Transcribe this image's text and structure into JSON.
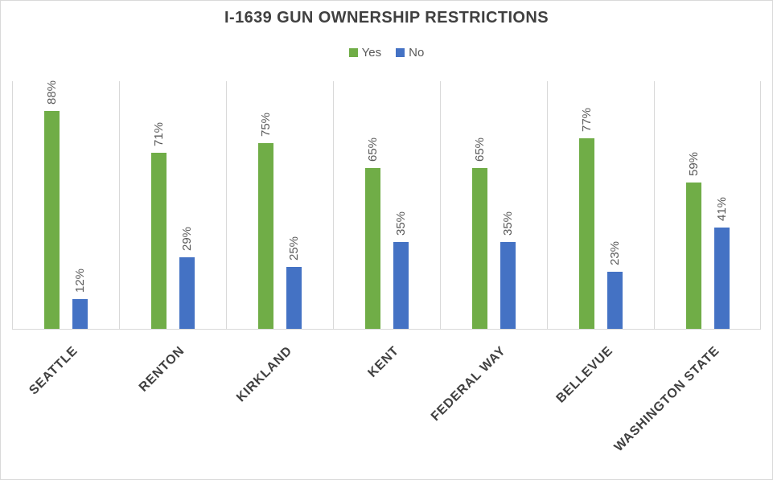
{
  "chart_data": {
    "type": "bar",
    "title": "I-1639 GUN OWNERSHIP RESTRICTIONS",
    "categories": [
      "SEATTLE",
      "RENTON",
      "KIRKLAND",
      "KENT",
      "FEDERAL WAY",
      "BELLEVUE",
      "WASHINGTON STATE"
    ],
    "series": [
      {
        "name": "Yes",
        "color": "#70AD47",
        "values": [
          88,
          71,
          75,
          65,
          65,
          77,
          59
        ]
      },
      {
        "name": "No",
        "color": "#4472C4",
        "values": [
          12,
          29,
          25,
          35,
          35,
          23,
          41
        ]
      }
    ],
    "value_suffix": "%",
    "ylim": [
      0,
      100
    ],
    "y_axis_labels_visible": false,
    "grid": "vertical category separators only",
    "legend_position": "top-center",
    "data_label_rotation": -90,
    "category_label_rotation": -45
  },
  "colors": {
    "bar_yes": "#70AD47",
    "bar_no": "#4472C4",
    "gridline": "#D9D9D9",
    "axis_line": "#D9D9D9",
    "chart_border": "#D9D9D9",
    "background": "#FFFFFF",
    "title_text": "#404040",
    "category_label_text": "#404040",
    "data_label_text": "#595959",
    "legend_text": "#595959"
  }
}
